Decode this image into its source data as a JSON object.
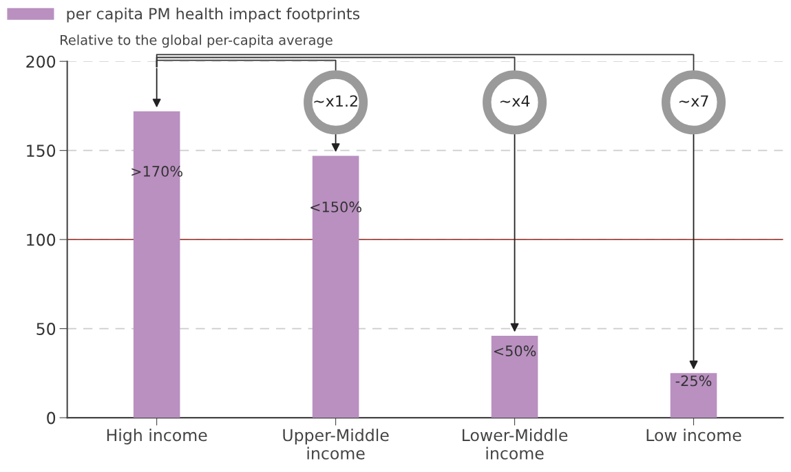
{
  "chart_data": {
    "type": "bar",
    "subtitle": "Relative to the global per-capita average",
    "categories": [
      "High income",
      "Upper-Middle\nincome",
      "Lower-Middle\nincome",
      "Low income"
    ],
    "series": [
      {
        "name": "per capita PM health impact footprints",
        "color": "#b990c0",
        "values": [
          172,
          147,
          46,
          25
        ]
      }
    ],
    "value_labels": [
      ">170%",
      "<150%",
      "<50%",
      "-25%"
    ],
    "annotations": [
      "~x1.2",
      "~x4",
      "~x7"
    ],
    "ref_lines": [
      {
        "axis": "y",
        "value": 100,
        "color": "#a0463c",
        "line_style": "solid"
      }
    ],
    "ylim": [
      0,
      200
    ],
    "yticks": [
      0,
      50,
      100,
      150,
      200
    ],
    "grid": "y",
    "legend": "top left"
  }
}
